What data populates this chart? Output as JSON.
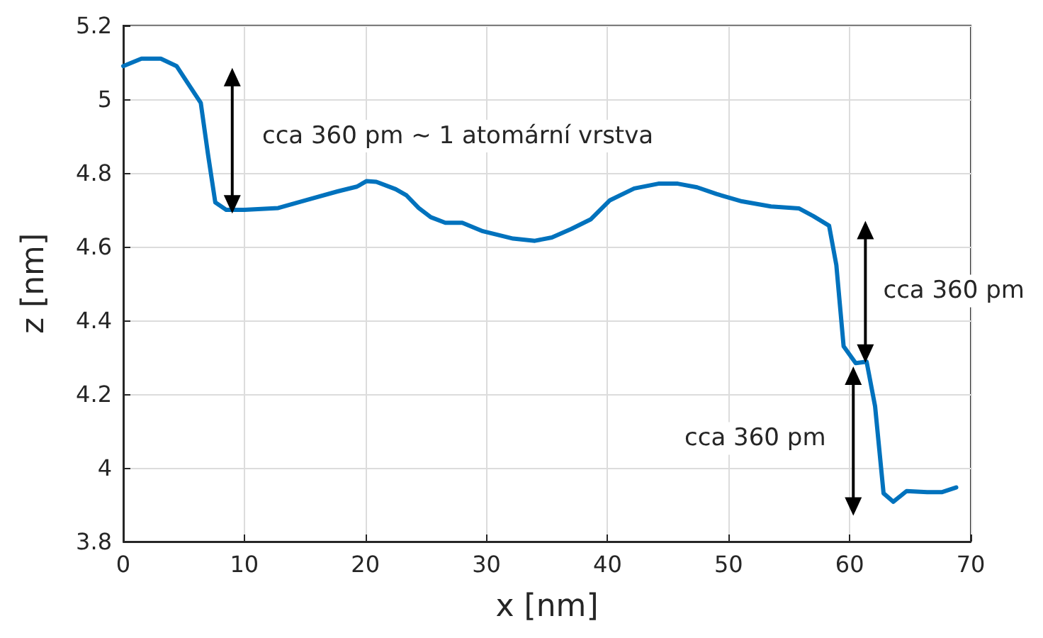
{
  "chart_data": {
    "type": "line",
    "xlabel": "x [nm]",
    "ylabel": "z [nm]",
    "xlim": [
      0,
      70
    ],
    "xticks": [
      0,
      10,
      20,
      30,
      40,
      50,
      60,
      70
    ],
    "ylim": [
      3.8,
      5.2
    ],
    "yticks": [
      {
        "value": 3.8,
        "label": "3.8"
      },
      {
        "value": 4,
        "label": "4"
      },
      {
        "value": 4.2,
        "label": "4.2"
      },
      {
        "value": 4.4,
        "label": "4.4"
      },
      {
        "value": 4.6,
        "label": "4.6"
      },
      {
        "value": 4.8,
        "label": "4.8"
      },
      {
        "value": 5,
        "label": "5"
      },
      {
        "value": 5.2,
        "label": "5.2"
      }
    ],
    "grid": true,
    "marker": "none",
    "line_style": "solid",
    "series": [
      {
        "color": "#0072bd",
        "x": [
          0,
          1.5,
          3.1,
          4.4,
          5.6,
          6.4,
          7.0,
          7.6,
          8.5,
          10,
          12.8,
          15.2,
          17.7,
          19.3,
          20.1,
          20.9,
          22.5,
          23.4,
          24.4,
          25.4,
          26.6,
          28.0,
          29.7,
          32.2,
          34.0,
          35.4,
          37.0,
          38.6,
          40.2,
          42.2,
          44.2,
          45.8,
          47.4,
          49.0,
          51.1,
          53.5,
          55.8,
          57.0,
          58.3,
          58.9,
          59.5,
          60.5,
          61.4,
          62.1,
          62.8,
          63.6,
          64.7,
          66.4,
          67.6,
          68.8
        ],
        "values": [
          5.09,
          5.11,
          5.11,
          5.09,
          5.03,
          4.99,
          4.85,
          4.72,
          4.7,
          4.7,
          4.705,
          4.727,
          4.75,
          4.763,
          4.778,
          4.776,
          4.756,
          4.739,
          4.705,
          4.68,
          4.665,
          4.665,
          4.642,
          4.622,
          4.616,
          4.625,
          4.648,
          4.674,
          4.726,
          4.758,
          4.771,
          4.771,
          4.761,
          4.743,
          4.723,
          4.709,
          4.704,
          4.683,
          4.657,
          4.55,
          4.33,
          4.284,
          4.288,
          4.167,
          3.931,
          3.908,
          3.937,
          3.934,
          3.934,
          3.947
        ]
      }
    ],
    "annotations": [
      "cca 360 pm ~ 1 atomární vrstva",
      "cca 360 pm",
      "cca 360 pm"
    ]
  }
}
